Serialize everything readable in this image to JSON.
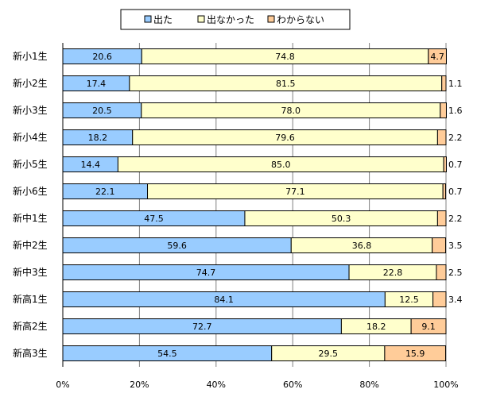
{
  "chart_data": {
    "type": "bar",
    "orientation": "horizontal",
    "stacked": true,
    "categories": [
      "新小1生",
      "新小2生",
      "新小3生",
      "新小4生",
      "新小5生",
      "新小6生",
      "新中1生",
      "新中2生",
      "新中3生",
      "新高1生",
      "新高2生",
      "新高3生"
    ],
    "series": [
      {
        "name": "出た",
        "color": "#99CCFF",
        "values": [
          20.6,
          17.4,
          20.5,
          18.2,
          14.4,
          22.1,
          47.5,
          59.6,
          74.7,
          84.1,
          72.7,
          54.5
        ]
      },
      {
        "name": "出なかった",
        "color": "#FFFFCC",
        "values": [
          74.8,
          81.5,
          78.0,
          79.6,
          85.0,
          77.1,
          50.3,
          36.8,
          22.8,
          12.5,
          18.2,
          29.5
        ]
      },
      {
        "name": "わからない",
        "color": "#FFCC99",
        "values": [
          4.7,
          1.1,
          1.6,
          2.2,
          0.7,
          0.7,
          2.2,
          3.5,
          2.5,
          3.4,
          9.1,
          15.9
        ]
      }
    ],
    "xlim": [
      0,
      100
    ],
    "xticks": [
      "0%",
      "20%",
      "40%",
      "60%",
      "80%",
      "100%"
    ],
    "grid": true,
    "legend_position": "top",
    "title": "",
    "xlabel": "",
    "ylabel": ""
  }
}
